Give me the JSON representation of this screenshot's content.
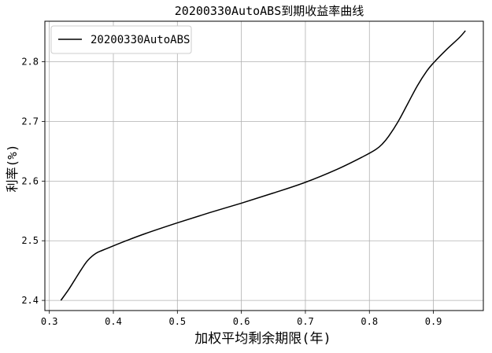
{
  "chart_data": {
    "type": "line",
    "title": "20200330AutoABS到期收益率曲线",
    "xlabel": "加权平均剩余期限(年)",
    "ylabel": "利率(%)",
    "xlim": [
      0.293,
      0.978
    ],
    "ylim": [
      2.383,
      2.868
    ],
    "xticks": [
      0.3,
      0.4,
      0.5,
      0.6,
      0.7,
      0.8,
      0.9
    ],
    "xtick_labels": [
      "0.3",
      "0.4",
      "0.5",
      "0.6",
      "0.7",
      "0.8",
      "0.9"
    ],
    "yticks": [
      2.4,
      2.5,
      2.6,
      2.7,
      2.8
    ],
    "ytick_labels": [
      "2.4",
      "2.5",
      "2.6",
      "2.7",
      "2.8"
    ],
    "grid": true,
    "legend_position": "top-left",
    "series": [
      {
        "name": "20200330AutoABS",
        "color": "#000000",
        "x": [
          0.318,
          0.33,
          0.34,
          0.35,
          0.36,
          0.373,
          0.39,
          0.42,
          0.45,
          0.5,
          0.55,
          0.6,
          0.65,
          0.7,
          0.75,
          0.79,
          0.81,
          0.82,
          0.83,
          0.845,
          0.86,
          0.875,
          0.89,
          0.9,
          0.92,
          0.94,
          0.95
        ],
        "y": [
          2.4,
          2.418,
          2.435,
          2.452,
          2.467,
          2.479,
          2.487,
          2.5,
          2.512,
          2.53,
          2.547,
          2.563,
          2.58,
          2.598,
          2.62,
          2.641,
          2.653,
          2.662,
          2.675,
          2.7,
          2.73,
          2.76,
          2.785,
          2.798,
          2.82,
          2.84,
          2.852
        ]
      }
    ]
  }
}
